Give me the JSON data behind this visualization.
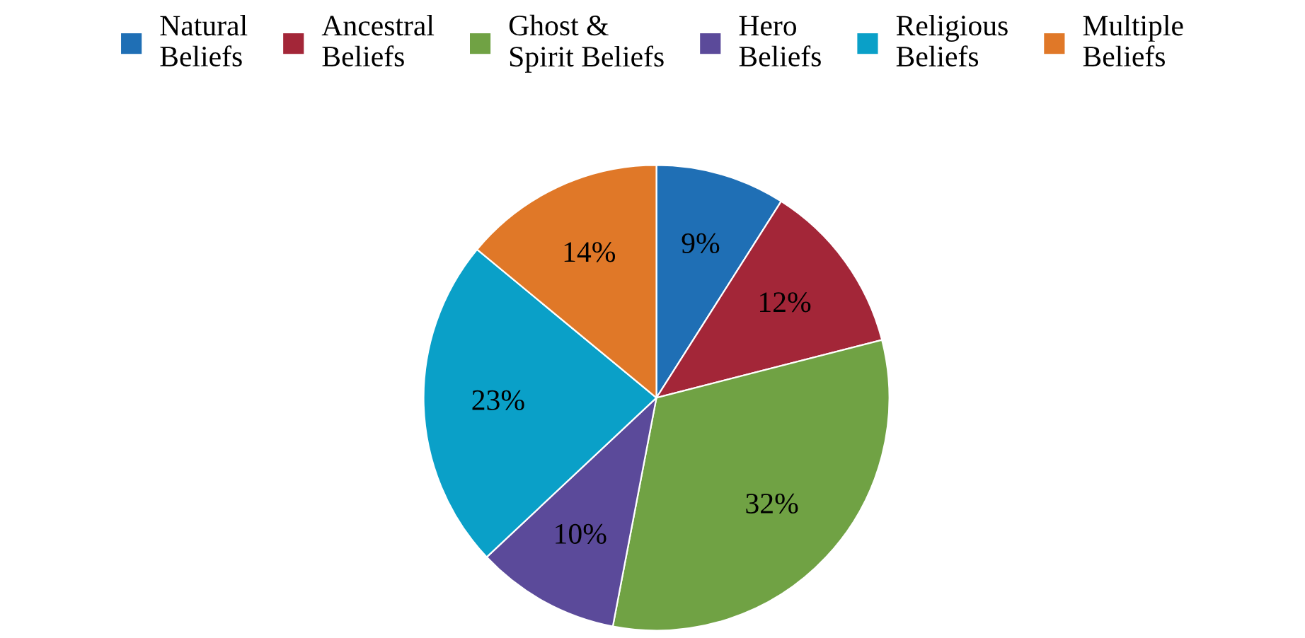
{
  "chart_data": {
    "type": "pie",
    "categories": [
      "Natural\nBeliefs",
      "Ancestral\nBeliefs",
      "Ghost &\nSpirit Beliefs",
      "Hero\nBeliefs",
      "Religious\nBeliefs",
      "Multiple\nBeliefs"
    ],
    "values": [
      9,
      12,
      32,
      10,
      23,
      14
    ],
    "value_labels": [
      "9%",
      "12%",
      "32%",
      "10%",
      "23%",
      "14%"
    ],
    "colors": [
      "#1f6fb5",
      "#a32638",
      "#70a244",
      "#5b4a9a",
      "#0aa0c8",
      "#e07828"
    ],
    "legend": "top"
  }
}
